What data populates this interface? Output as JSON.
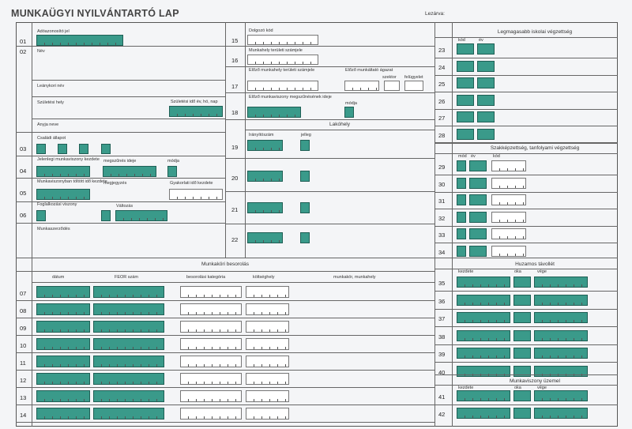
{
  "header": {
    "title": "MUNKAÜGYI NYILVÁNTARTÓ LAP",
    "lezarva": "Lezárva:"
  },
  "left": {
    "r01": "01",
    "r02": "02",
    "r03": "03",
    "r04": "04",
    "r05": "05",
    "r06": "06",
    "adoazonosito": "Adóazonosító jel",
    "nev": "Név",
    "leanykori": "Leánykori név",
    "szuletesi_hely": "Születési hely",
    "szuletesi_ido": "Születési idő év, hó, nap",
    "anyja": "Anyja neve",
    "csaladi": "Családi állapot",
    "jelenlegi": "Jelenlegi munkaviszony kezdete",
    "megszunes": "megszűnés ideje",
    "modja": "módja",
    "munkaviszonyban": "Munkaviszonyban töltött idő kezdete",
    "megjegyzes": "megjegyzés",
    "gyakorlati": "Gyakorlati idő kezdete",
    "foglalkozasi": "Foglalkozási viszony",
    "valtozas": "Változás",
    "munkaszerzodes": "Munkaszerződés"
  },
  "mid": {
    "r15": "15",
    "r16": "16",
    "r17": "17",
    "r18": "18",
    "r19": "19",
    "r20": "20",
    "r21": "21",
    "r22": "22",
    "dolgozo_kod": "Dolgozó kód",
    "munkahely_terulet": "Munkahely területi számjele",
    "elozo_munkahely": "Előző munkahely területi számjele",
    "elozo_munkaltato": "Előző munkáltató ágazat",
    "szektor": "szektor",
    "felugyelet": "felügyelet",
    "elozo_megszunes": "Előző munkaviszony megszűnésének ideje",
    "elozo_modja": "módja",
    "lakohely": "Lakóhely",
    "iranyitoszam": "Irányítószám",
    "jelleg": "jelleg"
  },
  "right": {
    "legmagasabb": "Legmagasabb iskolai végzettség",
    "kod": "kód",
    "ev": "év",
    "r23": "23",
    "r24": "24",
    "r25": "25",
    "r26": "26",
    "r27": "27",
    "r28": "28",
    "szakkepzettseg": "Szakképzettség, tanfolyami végzettség",
    "mod": "mód",
    "r29": "29",
    "r30": "30",
    "r31": "31",
    "r32": "32",
    "r33": "33",
    "r34": "34",
    "huzamos": "Huzamos távollét",
    "kezdete": "kezdete",
    "oka": "oka",
    "vege": "vége",
    "r35": "35",
    "r36": "36",
    "r37": "37",
    "r38": "38",
    "r39": "39",
    "r40": "40",
    "uzemeles": "Munkaviszony üzemel",
    "r41": "41",
    "r42": "42"
  },
  "bottom": {
    "munkakori": "Munkaköri besorolás",
    "datum": "dátum",
    "feor": "FEOR szám",
    "besorolasi": "besorolási kategória",
    "koltseghely": "költséghely",
    "munkakor": "munkakör, munkahely",
    "r07": "07",
    "r08": "08",
    "r09": "09",
    "r10": "10",
    "r11": "11",
    "r12": "12",
    "r13": "13",
    "r14": "14"
  }
}
